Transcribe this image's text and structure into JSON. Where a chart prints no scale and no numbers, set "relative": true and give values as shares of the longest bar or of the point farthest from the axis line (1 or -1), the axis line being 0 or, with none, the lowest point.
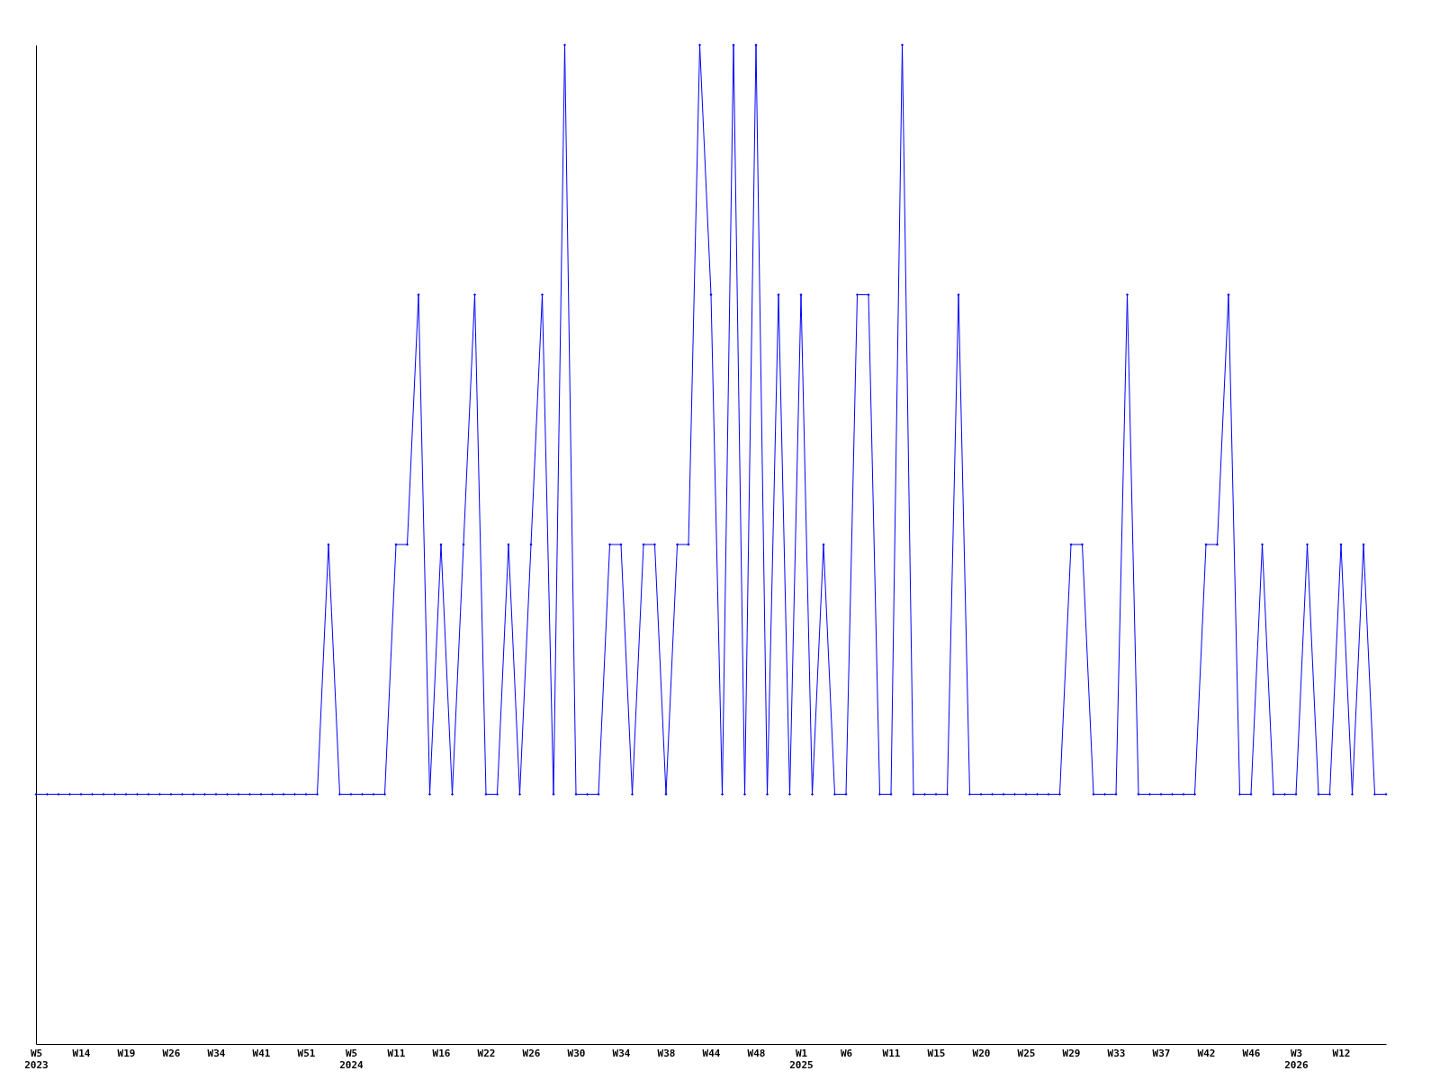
{
  "chart_data": {
    "type": "line",
    "relative": true,
    "marker": "diamond",
    "grid": false,
    "categories": [
      "W5\n2023",
      null,
      null,
      null,
      "W14",
      null,
      null,
      null,
      "W19",
      null,
      null,
      null,
      "W26",
      null,
      null,
      null,
      "W34",
      null,
      null,
      null,
      "W41",
      null,
      null,
      null,
      "W51",
      null,
      null,
      null,
      "W5\n2024",
      null,
      null,
      null,
      "W11",
      null,
      null,
      null,
      "W16",
      null,
      null,
      null,
      "W22",
      null,
      null,
      null,
      "W26",
      null,
      null,
      null,
      "W30",
      null,
      null,
      null,
      "W34",
      null,
      null,
      null,
      "W38",
      null,
      null,
      null,
      "W44",
      null,
      null,
      null,
      "W48",
      null,
      null,
      null,
      "W1\n2025",
      null,
      null,
      null,
      "W6",
      null,
      null,
      null,
      "W11",
      null,
      null,
      null,
      "W15",
      null,
      null,
      null,
      "W20",
      null,
      null,
      null,
      "W25",
      null,
      null,
      null,
      "W29",
      null,
      null,
      null,
      "W33",
      null,
      null,
      null,
      "W37",
      null,
      null,
      null,
      "W42",
      null,
      null,
      null,
      "W46",
      null,
      null,
      null,
      "W3\n2026",
      null,
      null,
      null,
      "W12",
      null,
      null,
      null,
      null
    ],
    "series": [
      {
        "color": "#0000ff",
        "values": [
          0.25,
          0.25,
          0.25,
          0.25,
          0.25,
          0.25,
          0.25,
          0.25,
          0.25,
          0.25,
          0.25,
          0.25,
          0.25,
          0.25,
          0.25,
          0.25,
          0.25,
          0.25,
          0.25,
          0.25,
          0.25,
          0.25,
          0.25,
          0.25,
          0.25,
          0.25,
          0.5,
          0.25,
          0.25,
          0.25,
          0.25,
          0.25,
          0.5,
          0.5,
          0.75,
          0.25,
          0.5,
          0.25,
          0.5,
          0.75,
          0.25,
          0.25,
          0.5,
          0.25,
          0.5,
          0.75,
          0.25,
          1,
          0.25,
          0.25,
          0.25,
          0.5,
          0.5,
          0.25,
          0.5,
          0.5,
          0.25,
          0.5,
          0.5,
          1,
          0.75,
          0.25,
          1,
          0.25,
          1,
          0.25,
          0.75,
          0.25,
          0.75,
          0.25,
          0.5,
          0.25,
          0.25,
          0.75,
          0.75,
          0.25,
          0.25,
          1,
          0.25,
          0.25,
          0.25,
          0.25,
          0.75,
          0.25,
          0.25,
          0.25,
          0.25,
          0.25,
          0.25,
          0.25,
          0.25,
          0.25,
          0.5,
          0.5,
          0.25,
          0.25,
          0.25,
          0.75,
          0.25,
          0.25,
          0.25,
          0.25,
          0.25,
          0.25,
          0.5,
          0.5,
          0.75,
          0.25,
          0.25,
          0.5,
          0.25,
          0.25,
          0.25,
          0.5,
          0.25,
          0.25,
          0.5,
          0.25,
          0.5,
          0.25,
          0.25
        ]
      }
    ]
  }
}
